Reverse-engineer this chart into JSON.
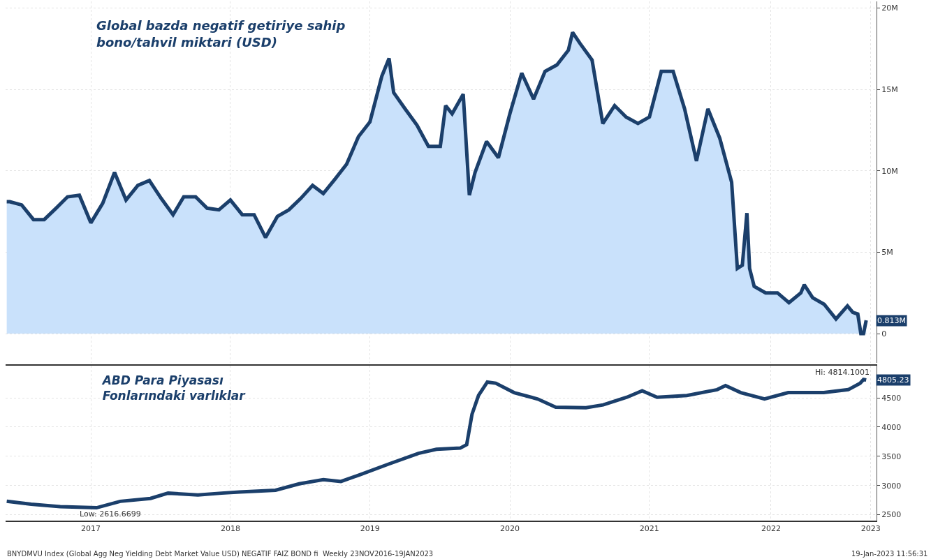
{
  "chart_data": [
    {
      "type": "area",
      "title": "Global bazda negatif getiriye sahip\nbono/tahvil miktari (USD)",
      "x": [
        "2016-11-23",
        "2016-12-01",
        "2017-01-01",
        "2017-02-01",
        "2017-03-01",
        "2017-04-01",
        "2017-05-01",
        "2017-06-01",
        "2017-07-01",
        "2017-08-01",
        "2017-09-01",
        "2017-10-01",
        "2017-11-01",
        "2017-12-01",
        "2018-01-01",
        "2018-02-01",
        "2018-03-01",
        "2018-04-01",
        "2018-05-01",
        "2018-06-01",
        "2018-07-01",
        "2018-08-01",
        "2018-09-01",
        "2018-10-01",
        "2018-11-01",
        "2018-12-01",
        "2019-01-01",
        "2019-02-01",
        "2019-03-01",
        "2019-04-01",
        "2019-05-01",
        "2019-06-01",
        "2019-07-01",
        "2019-08-01",
        "2019-08-20",
        "2019-09-01",
        "2019-10-01",
        "2019-11-01",
        "2019-12-01",
        "2020-01-01",
        "2020-01-15",
        "2020-02-01",
        "2020-03-01",
        "2020-03-17",
        "2020-04-01",
        "2020-05-01",
        "2020-06-01",
        "2020-07-01",
        "2020-08-01",
        "2020-09-01",
        "2020-10-01",
        "2020-11-01",
        "2020-12-01",
        "2020-12-12",
        "2021-01-01",
        "2021-02-01",
        "2021-03-01",
        "2021-04-01",
        "2021-05-01",
        "2021-06-01",
        "2021-07-01",
        "2021-08-01",
        "2021-09-01",
        "2021-10-01",
        "2021-11-01",
        "2021-12-01",
        "2022-01-01",
        "2022-02-01",
        "2022-02-16",
        "2022-03-01",
        "2022-03-13",
        "2022-03-20",
        "2022-04-01",
        "2022-05-01",
        "2022-06-01",
        "2022-07-01",
        "2022-08-01",
        "2022-08-10",
        "2022-09-01",
        "2022-10-01",
        "2022-11-01",
        "2022-12-01",
        "2022-12-15",
        "2022-12-28",
        "2023-01-05",
        "2023-01-12",
        "2023-01-19"
      ],
      "series": [
        {
          "color": "#1b3f6b",
          "values": [
            8.1,
            8.1,
            7.9,
            7.0,
            7.0,
            7.7,
            8.4,
            8.5,
            6.8,
            8.0,
            9.9,
            8.2,
            9.1,
            9.4,
            8.3,
            7.3,
            8.4,
            8.4,
            7.7,
            7.6,
            8.2,
            7.3,
            7.3,
            5.9,
            7.2,
            7.6,
            8.3,
            9.1,
            8.6,
            9.5,
            10.4,
            12.1,
            13.0,
            15.8,
            16.9,
            14.8,
            13.8,
            12.8,
            11.5,
            11.5,
            14.0,
            13.5,
            14.7,
            8.5,
            9.9,
            11.8,
            10.8,
            13.5,
            16.0,
            14.4,
            16.1,
            16.5,
            17.4,
            18.5,
            17.8,
            16.8,
            12.9,
            14.0,
            13.3,
            12.9,
            13.3,
            16.1,
            16.1,
            13.8,
            10.6,
            13.8,
            12.0,
            9.3,
            4.0,
            4.2,
            7.4,
            4.0,
            2.9,
            2.5,
            2.5,
            1.9,
            2.5,
            3.0,
            2.2,
            1.8,
            0.9,
            1.7,
            1.3,
            1.2,
            0.0,
            0.0,
            0.813
          ]
        }
      ],
      "ylim": [
        -1.8,
        20.4
      ],
      "yticks": [
        0,
        {
          "value": 5,
          "label": "5M"
        },
        {
          "value": 10,
          "label": "10M"
        },
        {
          "value": 15,
          "label": "15M"
        },
        {
          "value": 20,
          "label": "20M"
        }
      ],
      "xlim": [
        "2016-11-20",
        "2023-02-15"
      ],
      "xticks": [
        {
          "value": "2017-07-01",
          "label": null
        },
        {
          "value": "2018-07-01",
          "label": null
        },
        {
          "value": "2019-07-01",
          "label": null
        },
        {
          "value": "2020-07-01",
          "label": null
        },
        {
          "value": "2021-07-01",
          "label": null
        },
        {
          "value": "2022-05-15",
          "label": null
        },
        {
          "value": "2023-01-31",
          "label": null
        }
      ],
      "tick_labels": "y",
      "grid": true,
      "annotations": [
        {
          "text": "0.813M",
          "x": "2023-01-19",
          "y": 0.813
        }
      ]
    },
    {
      "type": "line",
      "title": "ABD Para Piyasası\nFonlarındaki varlıklar",
      "x": [
        "2016-11-23",
        "2017-01-26",
        "2017-04-12",
        "2017-07-16",
        "2017-09-16",
        "2017-12-04",
        "2018-01-19",
        "2018-04-07",
        "2018-06-08",
        "2018-07-25",
        "2018-10-27",
        "2018-12-28",
        "2019-03-01",
        "2019-04-16",
        "2019-06-03",
        "2019-08-20",
        "2019-11-05",
        "2019-12-22",
        "2020-02-22",
        "2020-03-10",
        "2020-03-24",
        "2020-04-10",
        "2020-05-03",
        "2020-05-25",
        "2020-07-12",
        "2020-09-12",
        "2020-10-29",
        "2021-01-16",
        "2021-03-02",
        "2021-05-03",
        "2021-06-12",
        "2021-07-21",
        "2021-10-07",
        "2021-12-25",
        "2022-01-16",
        "2022-02-25",
        "2022-04-28",
        "2022-06-29",
        "2022-09-30",
        "2022-12-03",
        "2023-01-03",
        "2023-01-12",
        "2023-01-19"
      ],
      "series": [
        {
          "color": "#1b3f6b",
          "values": [
            2730,
            2680,
            2640,
            2620,
            2730,
            2780,
            2870,
            2840,
            2870,
            2890,
            2920,
            3030,
            3100,
            3070,
            3180,
            3370,
            3550,
            3620,
            3640,
            3700,
            4220,
            4540,
            4770,
            4750,
            4590,
            4480,
            4340,
            4330,
            4380,
            4510,
            4620,
            4510,
            4540,
            4640,
            4710,
            4590,
            4480,
            4590,
            4590,
            4640,
            4750,
            4814,
            4805
          ]
        }
      ],
      "ylim": [
        2400,
        5050
      ],
      "yticks": [
        2500,
        3000,
        3500,
        4000,
        4500
      ],
      "xlim": [
        "2016-11-20",
        "2023-02-15"
      ],
      "xticks": [
        {
          "value": "2017-07-01",
          "label": "2017"
        },
        {
          "value": "2018-07-01",
          "label": "2018"
        },
        {
          "value": "2019-07-01",
          "label": "2019"
        },
        {
          "value": "2020-07-01",
          "label": "2020"
        },
        {
          "value": "2021-07-01",
          "label": "2021"
        },
        {
          "value": "2022-05-15",
          "label": "2022"
        },
        {
          "value": "2023-01-31",
          "label": "2023"
        }
      ],
      "grid": true,
      "annotations": [
        {
          "text": "Low: 2616.6699",
          "x": "2017-07-16",
          "y": 2616.6699
        },
        {
          "text": "Hi: 4814.1001",
          "x": "2023-01-12",
          "y": 4814.1001
        },
        {
          "text": "4805.23",
          "x": "2023-01-19",
          "y": 4805.23
        },
        "BNYDMVU Index (Global Agg Neg Yielding Debt Market Value USD) NEGATIF FAIZ BOND fi  Weekly 23NOV2016-19JAN2023",
        "19-Jan-2023 11:56:31"
      ]
    }
  ]
}
